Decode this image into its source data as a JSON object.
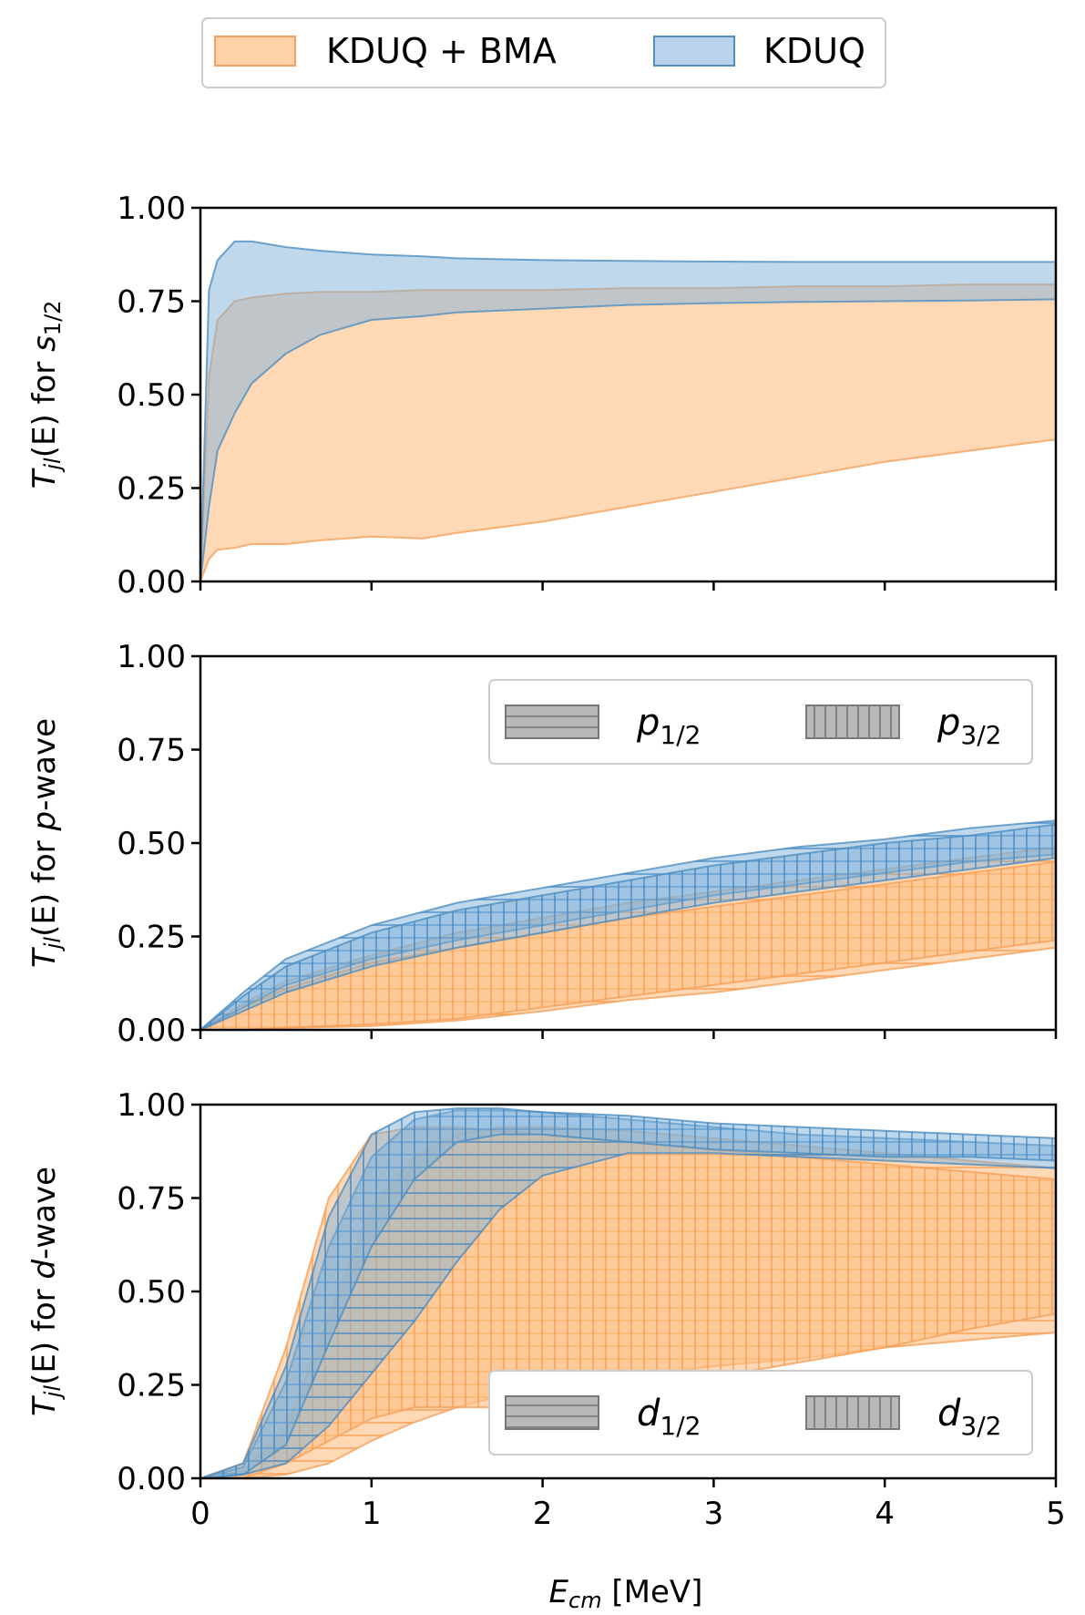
{
  "chart_data": {
    "type": "area",
    "legend": {
      "placement": "top-center",
      "entries": [
        {
          "label": "KDUQ + BMA",
          "color": "#ffbf86"
        },
        {
          "label": "KDUQ",
          "color": "#7fb1d9"
        }
      ]
    },
    "xlabel_main": "E",
    "xlabel_sub": "cm",
    "xlabel_unit": " [MeV]",
    "xlim": [
      0,
      5
    ],
    "x_ticks": [
      "0",
      "1",
      "2",
      "3",
      "4",
      "5"
    ],
    "y_ticks": [
      "0.00",
      "0.25",
      "0.50",
      "0.75",
      "1.00"
    ],
    "colors": {
      "bma": "#ffbf86",
      "bma_edge": "#f5a05a",
      "kduq": "#7fb1d9",
      "kduq_edge": "#4f8fc0"
    },
    "panels": [
      {
        "id": "s",
        "ylabel_prefix": "T",
        "ylabel_sub": "jl",
        "ylabel_mid": "(E) for ",
        "ylabel_italic": "s",
        "ylabel_wave_sub": "1/2",
        "ylabel_suffix": "",
        "ylim": [
          0,
          1
        ],
        "grid": false,
        "bands": [
          {
            "series": "KDUQ + BMA",
            "hatch": "none",
            "x": [
              0,
              0.05,
              0.1,
              0.2,
              0.3,
              0.5,
              0.7,
              1.0,
              1.3,
              1.5,
              2.0,
              2.5,
              3.0,
              3.5,
              4.0,
              4.5,
              5.0
            ],
            "lower": [
              0,
              0.06,
              0.085,
              0.09,
              0.1,
              0.1,
              0.11,
              0.12,
              0.115,
              0.13,
              0.16,
              0.2,
              0.24,
              0.28,
              0.32,
              0.35,
              0.38
            ],
            "upper": [
              0,
              0.55,
              0.7,
              0.75,
              0.76,
              0.77,
              0.775,
              0.775,
              0.78,
              0.78,
              0.78,
              0.785,
              0.785,
              0.79,
              0.79,
              0.795,
              0.795
            ]
          },
          {
            "series": "KDUQ",
            "hatch": "none",
            "x": [
              0,
              0.05,
              0.1,
              0.2,
              0.3,
              0.5,
              0.7,
              1.0,
              1.3,
              1.5,
              2.0,
              2.5,
              3.0,
              3.5,
              4.0,
              4.5,
              5.0
            ],
            "lower": [
              0,
              0.2,
              0.35,
              0.45,
              0.53,
              0.61,
              0.66,
              0.7,
              0.71,
              0.72,
              0.73,
              0.74,
              0.745,
              0.748,
              0.75,
              0.752,
              0.755
            ],
            "upper": [
              0,
              0.78,
              0.86,
              0.91,
              0.91,
              0.895,
              0.885,
              0.875,
              0.87,
              0.865,
              0.86,
              0.858,
              0.856,
              0.855,
              0.855,
              0.855,
              0.855
            ]
          }
        ]
      },
      {
        "id": "p",
        "ylabel_prefix": "T",
        "ylabel_sub": "jl",
        "ylabel_mid": "(E) for ",
        "ylabel_italic": "p",
        "ylabel_wave_sub": "",
        "ylabel_suffix": "-wave",
        "ylim": [
          0,
          1
        ],
        "grid": false,
        "hatch_legend": {
          "placement": "upper-right",
          "entries": [
            {
              "main": "p",
              "sub": "1/2",
              "hatch": "horizontal"
            },
            {
              "main": "p",
              "sub": "3/2",
              "hatch": "vertical"
            }
          ]
        },
        "bands": [
          {
            "series": "KDUQ + BMA",
            "hatch": "horizontal",
            "x": [
              0,
              0.25,
              0.5,
              1.0,
              1.5,
              2.0,
              2.5,
              3.0,
              3.5,
              4.0,
              4.5,
              5.0
            ],
            "lower": [
              0,
              0.0,
              0.005,
              0.01,
              0.025,
              0.05,
              0.08,
              0.1,
              0.13,
              0.16,
              0.19,
              0.22
            ],
            "upper": [
              0,
              0.07,
              0.13,
              0.2,
              0.26,
              0.3,
              0.34,
              0.37,
              0.4,
              0.43,
              0.46,
              0.49
            ]
          },
          {
            "series": "KDUQ + BMA",
            "hatch": "vertical",
            "x": [
              0,
              0.25,
              0.5,
              1.0,
              1.5,
              2.0,
              2.5,
              3.0,
              3.5,
              4.0,
              4.5,
              5.0
            ],
            "lower": [
              0,
              0.0,
              0.006,
              0.015,
              0.03,
              0.06,
              0.09,
              0.12,
              0.15,
              0.18,
              0.21,
              0.24
            ],
            "upper": [
              0,
              0.06,
              0.11,
              0.18,
              0.22,
              0.26,
              0.3,
              0.33,
              0.36,
              0.39,
              0.42,
              0.45
            ]
          },
          {
            "series": "KDUQ",
            "hatch": "horizontal",
            "x": [
              0,
              0.25,
              0.5,
              1.0,
              1.5,
              2.0,
              2.5,
              3.0,
              3.5,
              4.0,
              4.5,
              5.0
            ],
            "lower": [
              0,
              0.06,
              0.12,
              0.19,
              0.24,
              0.28,
              0.32,
              0.36,
              0.39,
              0.42,
              0.45,
              0.47
            ],
            "upper": [
              0,
              0.1,
              0.19,
              0.28,
              0.34,
              0.38,
              0.42,
              0.46,
              0.49,
              0.51,
              0.54,
              0.56
            ]
          },
          {
            "series": "KDUQ",
            "hatch": "vertical",
            "x": [
              0,
              0.25,
              0.5,
              1.0,
              1.5,
              2.0,
              2.5,
              3.0,
              3.5,
              4.0,
              4.5,
              5.0
            ],
            "lower": [
              0,
              0.05,
              0.1,
              0.17,
              0.22,
              0.26,
              0.3,
              0.34,
              0.37,
              0.4,
              0.43,
              0.46
            ],
            "upper": [
              0,
              0.09,
              0.17,
              0.26,
              0.32,
              0.36,
              0.4,
              0.44,
              0.47,
              0.5,
              0.52,
              0.55
            ]
          }
        ]
      },
      {
        "id": "d",
        "ylabel_prefix": "T",
        "ylabel_sub": "jl",
        "ylabel_mid": "(E) for ",
        "ylabel_italic": "d",
        "ylabel_wave_sub": "",
        "ylabel_suffix": "-wave",
        "ylim": [
          0,
          1
        ],
        "grid": false,
        "hatch_legend": {
          "placement": "lower-right",
          "entries": [
            {
              "main": "d",
              "sub": "1/2",
              "hatch": "horizontal"
            },
            {
              "main": "d",
              "sub": "3/2",
              "hatch": "vertical"
            }
          ]
        },
        "bands": [
          {
            "series": "KDUQ + BMA",
            "hatch": "horizontal",
            "x": [
              0,
              0.25,
              0.5,
              0.75,
              1.0,
              1.25,
              1.5,
              1.75,
              2.0,
              2.5,
              3.0,
              3.5,
              4.0,
              4.5,
              5.0
            ],
            "lower": [
              0,
              0.0,
              0.01,
              0.04,
              0.1,
              0.15,
              0.19,
              0.22,
              0.24,
              0.27,
              0.3,
              0.32,
              0.35,
              0.37,
              0.39
            ],
            "upper": [
              0,
              0.02,
              0.13,
              0.43,
              0.72,
              0.86,
              0.92,
              0.94,
              0.94,
              0.93,
              0.91,
              0.89,
              0.87,
              0.85,
              0.83
            ]
          },
          {
            "series": "KDUQ + BMA",
            "hatch": "vertical",
            "x": [
              0,
              0.25,
              0.5,
              0.75,
              1.0,
              1.25,
              1.5,
              1.75,
              2.0,
              2.5,
              3.0,
              3.5,
              4.0,
              4.5,
              5.0
            ],
            "lower": [
              0,
              0.0,
              0.04,
              0.1,
              0.16,
              0.19,
              0.19,
              0.19,
              0.19,
              0.22,
              0.27,
              0.31,
              0.35,
              0.4,
              0.44
            ],
            "upper": [
              0,
              0.04,
              0.35,
              0.75,
              0.92,
              0.94,
              0.94,
              0.93,
              0.92,
              0.9,
              0.88,
              0.86,
              0.84,
              0.82,
              0.8
            ]
          },
          {
            "series": "KDUQ",
            "hatch": "horizontal",
            "x": [
              0,
              0.25,
              0.5,
              0.75,
              1.0,
              1.25,
              1.5,
              1.75,
              2.0,
              2.5,
              3.0,
              3.5,
              4.0,
              4.5,
              5.0
            ],
            "lower": [
              0,
              0.01,
              0.04,
              0.14,
              0.28,
              0.42,
              0.58,
              0.72,
              0.81,
              0.87,
              0.87,
              0.86,
              0.85,
              0.84,
              0.83
            ],
            "upper": [
              0,
              0.03,
              0.26,
              0.62,
              0.86,
              0.96,
              0.985,
              0.985,
              0.98,
              0.96,
              0.94,
              0.92,
              0.91,
              0.9,
              0.89
            ]
          },
          {
            "series": "KDUQ",
            "hatch": "vertical",
            "x": [
              0,
              0.25,
              0.5,
              0.75,
              1.0,
              1.25,
              1.5,
              1.75,
              2.0,
              2.5,
              3.0,
              3.5,
              4.0,
              4.5,
              5.0
            ],
            "lower": [
              0,
              0.01,
              0.09,
              0.36,
              0.62,
              0.8,
              0.9,
              0.92,
              0.92,
              0.9,
              0.88,
              0.87,
              0.86,
              0.86,
              0.85
            ],
            "upper": [
              0,
              0.04,
              0.3,
              0.7,
              0.92,
              0.98,
              0.99,
              0.99,
              0.98,
              0.97,
              0.95,
              0.94,
              0.93,
              0.92,
              0.91
            ]
          }
        ]
      }
    ]
  }
}
